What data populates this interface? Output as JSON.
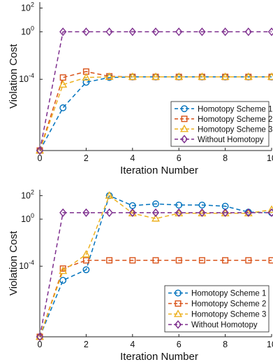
{
  "chart_data": [
    {
      "type": "line",
      "xlabel": "Iteration Number",
      "ylabel": "Violation Cost",
      "xlim": [
        0,
        10
      ],
      "ylim_log10": [
        -10,
        2.5
      ],
      "y_scale": "log",
      "x_ticks": [
        "0",
        "2",
        "4",
        "6",
        "8",
        "10"
      ],
      "y_ticks": [
        {
          "exp": 2,
          "base": "10",
          "sup": "2"
        },
        {
          "exp": 0,
          "base": "10",
          "sup": "0"
        },
        {
          "exp": -4,
          "base": "10",
          "sup": "-4"
        }
      ],
      "grid": false,
      "legend_position": "bottom-right",
      "series": [
        {
          "name": "Homotopy Scheme 1",
          "color": "#0072BD",
          "marker": "circle",
          "x": [
            0,
            1,
            2,
            3,
            4,
            5,
            6,
            7,
            8,
            9,
            10
          ],
          "y_log10": [
            -10,
            -6.4,
            -4.25,
            -3.85,
            -3.8,
            -3.8,
            -3.8,
            -3.8,
            -3.8,
            -3.8,
            -3.8
          ]
        },
        {
          "name": "Homotopy Scheme 2",
          "color": "#D95319",
          "marker": "square",
          "x": [
            0,
            1,
            2,
            3,
            4,
            5,
            6,
            7,
            8,
            9,
            10
          ],
          "y_log10": [
            -10,
            -3.85,
            -3.35,
            -3.75,
            -3.8,
            -3.8,
            -3.8,
            -3.8,
            -3.8,
            -3.8,
            -3.8
          ]
        },
        {
          "name": "Homotopy Scheme 3",
          "color": "#EDB120",
          "marker": "triangle",
          "x": [
            0,
            1,
            2,
            3,
            4,
            5,
            6,
            7,
            8,
            9,
            10
          ],
          "y_log10": [
            -10,
            -4.45,
            -3.85,
            -3.8,
            -3.8,
            -3.8,
            -3.8,
            -3.8,
            -3.8,
            -3.8,
            -3.8
          ]
        },
        {
          "name": "Without Homotopy",
          "color": "#7E2F8E",
          "marker": "diamond",
          "x": [
            0,
            1,
            2,
            3,
            4,
            5,
            6,
            7,
            8,
            9,
            10
          ],
          "y_log10": [
            -10,
            0,
            0,
            0,
            0,
            0,
            0,
            0,
            0,
            0,
            0
          ]
        }
      ]
    },
    {
      "type": "line",
      "xlabel": "Iteration Number",
      "ylabel": "Violation Cost",
      "xlim": [
        0,
        10
      ],
      "ylim_log10": [
        -10,
        2.5
      ],
      "y_scale": "log",
      "x_ticks": [
        "0",
        "2",
        "4",
        "6",
        "8",
        "10"
      ],
      "y_ticks": [
        {
          "exp": 2,
          "base": "10",
          "sup": "2"
        },
        {
          "exp": 0,
          "base": "10",
          "sup": "0"
        },
        {
          "exp": -4,
          "base": "10",
          "sup": "-4"
        }
      ],
      "grid": false,
      "legend_position": "bottom-right",
      "series": [
        {
          "name": "Homotopy Scheme 1",
          "color": "#0072BD",
          "marker": "circle",
          "x": [
            0,
            1,
            2,
            3,
            4,
            5,
            6,
            7,
            8,
            9,
            10
          ],
          "y_log10": [
            -10,
            -5.2,
            -4.3,
            2.0,
            1.15,
            1.3,
            1.2,
            1.2,
            1.1,
            0.6,
            0.55
          ]
        },
        {
          "name": "Homotopy Scheme 2",
          "color": "#D95319",
          "marker": "square",
          "x": [
            0,
            1,
            2,
            3,
            4,
            5,
            6,
            7,
            8,
            9,
            10
          ],
          "y_log10": [
            -10,
            -4.2,
            -3.5,
            -3.5,
            -3.5,
            -3.5,
            -3.5,
            -3.5,
            -3.5,
            -3.5,
            -3.5
          ]
        },
        {
          "name": "Homotopy Scheme 3",
          "color": "#EDB120",
          "marker": "triangle",
          "x": [
            0,
            1,
            2,
            3,
            4,
            5,
            6,
            7,
            8,
            9,
            10
          ],
          "y_log10": [
            -10,
            -4.4,
            -3.0,
            2.0,
            0.5,
            0.05,
            0.5,
            0.5,
            0.5,
            0.5,
            0.8
          ]
        },
        {
          "name": "Without Homotopy",
          "color": "#7E2F8E",
          "marker": "diamond",
          "x": [
            0,
            1,
            2,
            3,
            4,
            5,
            6,
            7,
            8,
            9,
            10
          ],
          "y_log10": [
            -10,
            0.55,
            0.55,
            0.55,
            0.55,
            0.55,
            0.55,
            0.55,
            0.55,
            0.55,
            0.55
          ]
        }
      ]
    }
  ]
}
